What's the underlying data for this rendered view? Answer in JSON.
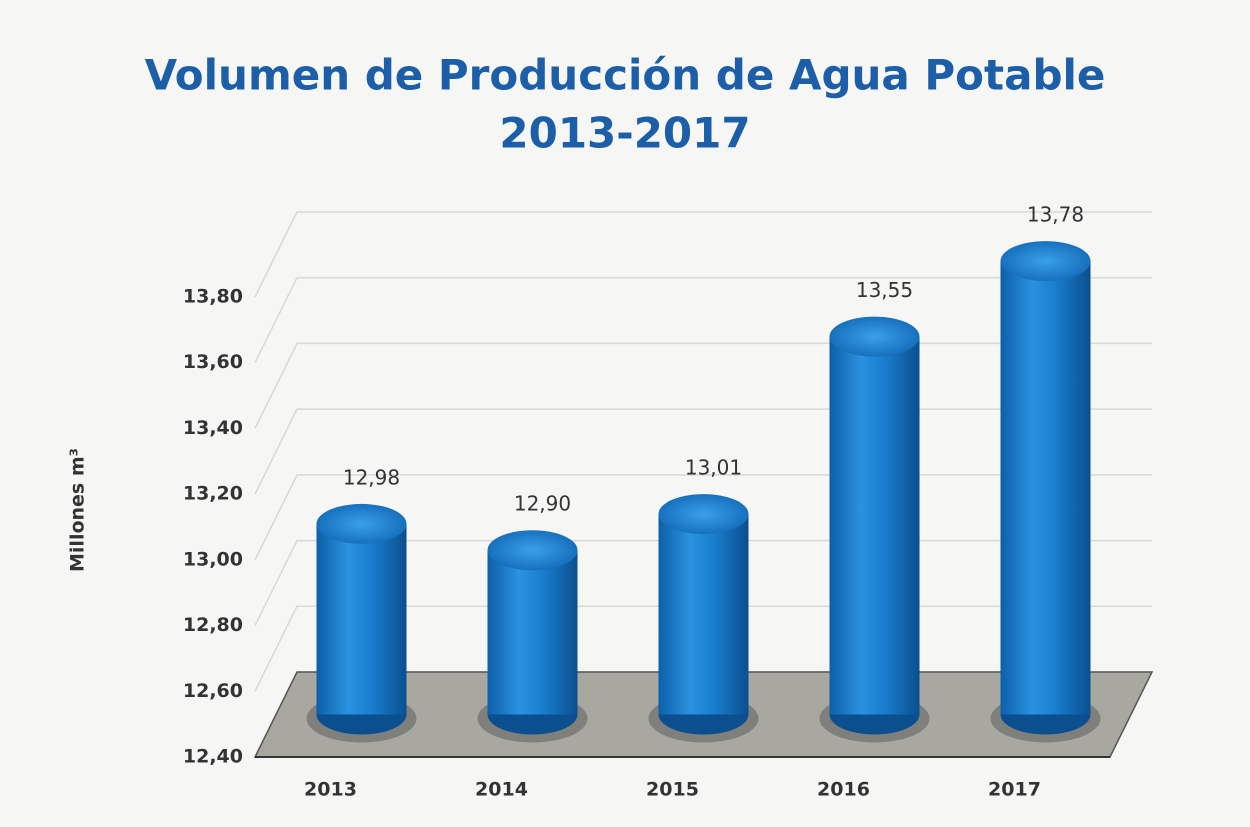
{
  "chart_data": {
    "type": "bar3d",
    "title_lines": [
      "Volumen de Producción de Agua Potable",
      "2013-2017"
    ],
    "y_label": "Millones m³",
    "categories": [
      "2013",
      "2014",
      "2015",
      "2016",
      "2017"
    ],
    "values": [
      12.98,
      12.9,
      13.01,
      13.55,
      13.78
    ],
    "value_labels": [
      "12,98",
      "12,90",
      "13,01",
      "13,55",
      "13,78"
    ],
    "color": "#1a7fd0",
    "ylim": [
      12.4,
      13.8
    ],
    "yticks": [
      {
        "value": 12.4,
        "label": "12,40"
      },
      {
        "value": 12.6,
        "label": "12,60"
      },
      {
        "value": 12.8,
        "label": "12,80"
      },
      {
        "value": 13.0,
        "label": "13,00"
      },
      {
        "value": 13.2,
        "label": "13,20"
      },
      {
        "value": 13.4,
        "label": "13,40"
      },
      {
        "value": 13.6,
        "label": "13,60"
      },
      {
        "value": 13.8,
        "label": "13,80"
      }
    ],
    "grid": true
  }
}
